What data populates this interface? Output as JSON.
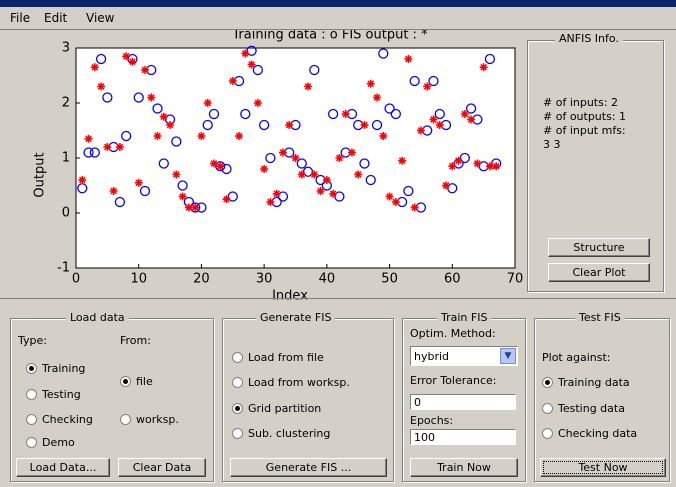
{
  "menu": [
    "File",
    "Edit",
    "View"
  ],
  "chart_data": {
    "type": "scatter",
    "title": "Training data : o   FIS output : *",
    "x_label": "Index",
    "y_label": "Output",
    "xlim": [
      0,
      70
    ],
    "ylim": [
      -1,
      3
    ],
    "xticks": [
      0,
      10,
      20,
      30,
      40,
      50,
      60,
      70
    ],
    "yticks": [
      -1,
      0,
      1,
      2,
      3
    ],
    "x": [
      1,
      2,
      3,
      4,
      5,
      6,
      7,
      8,
      9,
      10,
      11,
      12,
      13,
      14,
      15,
      16,
      17,
      18,
      19,
      20,
      21,
      22,
      23,
      24,
      25,
      26,
      27,
      28,
      29,
      30,
      31,
      32,
      33,
      34,
      35,
      36,
      37,
      38,
      39,
      40,
      41,
      42,
      43,
      44,
      45,
      46,
      47,
      48,
      49,
      50,
      51,
      52,
      53,
      54,
      55,
      56,
      57,
      58,
      59,
      60,
      61,
      62,
      63,
      64,
      65,
      66,
      67
    ],
    "series": [
      {
        "marker": "o",
        "color": "#0000ff",
        "values": [
          0.45,
          1.1,
          1.1,
          2.8,
          2.1,
          1.2,
          0.2,
          1.4,
          2.8,
          2.1,
          0.4,
          2.6,
          1.9,
          0.9,
          1.7,
          1.3,
          0.5,
          0.2,
          0.1,
          0.1,
          1.6,
          1.8,
          0.85,
          0.8,
          0.3,
          2.4,
          1.8,
          2.95,
          2.6,
          1.6,
          1.0,
          0.2,
          0.3,
          1.1,
          1.6,
          0.9,
          0.75,
          2.6,
          0.6,
          0.5,
          1.8,
          0.3,
          1.1,
          1.8,
          1.6,
          0.9,
          0.6,
          1.6,
          2.9,
          1.9,
          1.8,
          0.2,
          0.4,
          2.4,
          0.1,
          1.5,
          2.4,
          1.8,
          1.6,
          0.45,
          0.9,
          1.0,
          1.9,
          1.7,
          0.85,
          2.8,
          0.9
        ]
      },
      {
        "marker": "*",
        "color": "#ff0000",
        "values": [
          0.6,
          1.35,
          2.65,
          2.3,
          1.2,
          0.4,
          1.2,
          2.85,
          2.75,
          0.55,
          2.6,
          2.1,
          1.4,
          1.75,
          1.6,
          0.7,
          0.3,
          0.1,
          0.1,
          1.4,
          2.0,
          0.9,
          0.85,
          0.25,
          2.4,
          1.4,
          2.9,
          2.7,
          2.0,
          0.8,
          0.2,
          0.35,
          1.1,
          1.6,
          1.0,
          0.7,
          2.3,
          0.7,
          0.4,
          0.6,
          0.35,
          1.0,
          1.8,
          1.1,
          0.7,
          1.6,
          2.35,
          2.1,
          1.4,
          0.3,
          0.2,
          0.95,
          2.8,
          0.1,
          1.5,
          2.3,
          1.7,
          1.6,
          0.5,
          0.85,
          0.95,
          1.8,
          1.7,
          0.9,
          2.65,
          0.85,
          0.85
        ]
      }
    ]
  },
  "anfis_info": {
    "title": "ANFIS Info.",
    "lines": [
      "# of inputs: 2",
      "# of outputs: 1",
      "# of input mfs:",
      "3 3"
    ],
    "buttons": [
      "Structure",
      "Clear Plot"
    ]
  },
  "load_data": {
    "title": "Load data",
    "type_label": "Type:",
    "from_label": "From:",
    "type_options": [
      {
        "label": "Training",
        "checked": true
      },
      {
        "label": "Testing",
        "checked": false
      },
      {
        "label": "Checking",
        "checked": false
      },
      {
        "label": "Demo",
        "checked": false
      }
    ],
    "from_options": [
      {
        "label": "file",
        "checked": true
      },
      {
        "label": "worksp.",
        "checked": false
      }
    ],
    "buttons": [
      "Load Data...",
      "Clear Data"
    ]
  },
  "generate_fis": {
    "title": "Generate FIS",
    "options": [
      {
        "label": "Load from file",
        "checked": false
      },
      {
        "label": "Load from worksp.",
        "checked": false
      },
      {
        "label": "Grid partition",
        "checked": true
      },
      {
        "label": "Sub. clustering",
        "checked": false
      }
    ],
    "button": "Generate FIS ..."
  },
  "train_fis": {
    "title": "Train FIS",
    "method_label": "Optim. Method:",
    "method": "hybrid",
    "tolerance_label": "Error Tolerance:",
    "tolerance": "0",
    "epochs_label": "Epochs:",
    "epochs": "100",
    "button": "Train Now"
  },
  "test_fis": {
    "title": "Test FIS",
    "plot_label": "Plot against:",
    "options": [
      {
        "label": "Training data",
        "checked": true
      },
      {
        "label": "Testing data",
        "checked": false
      },
      {
        "label": "Checking data",
        "checked": false
      }
    ],
    "button": "Test Now"
  }
}
